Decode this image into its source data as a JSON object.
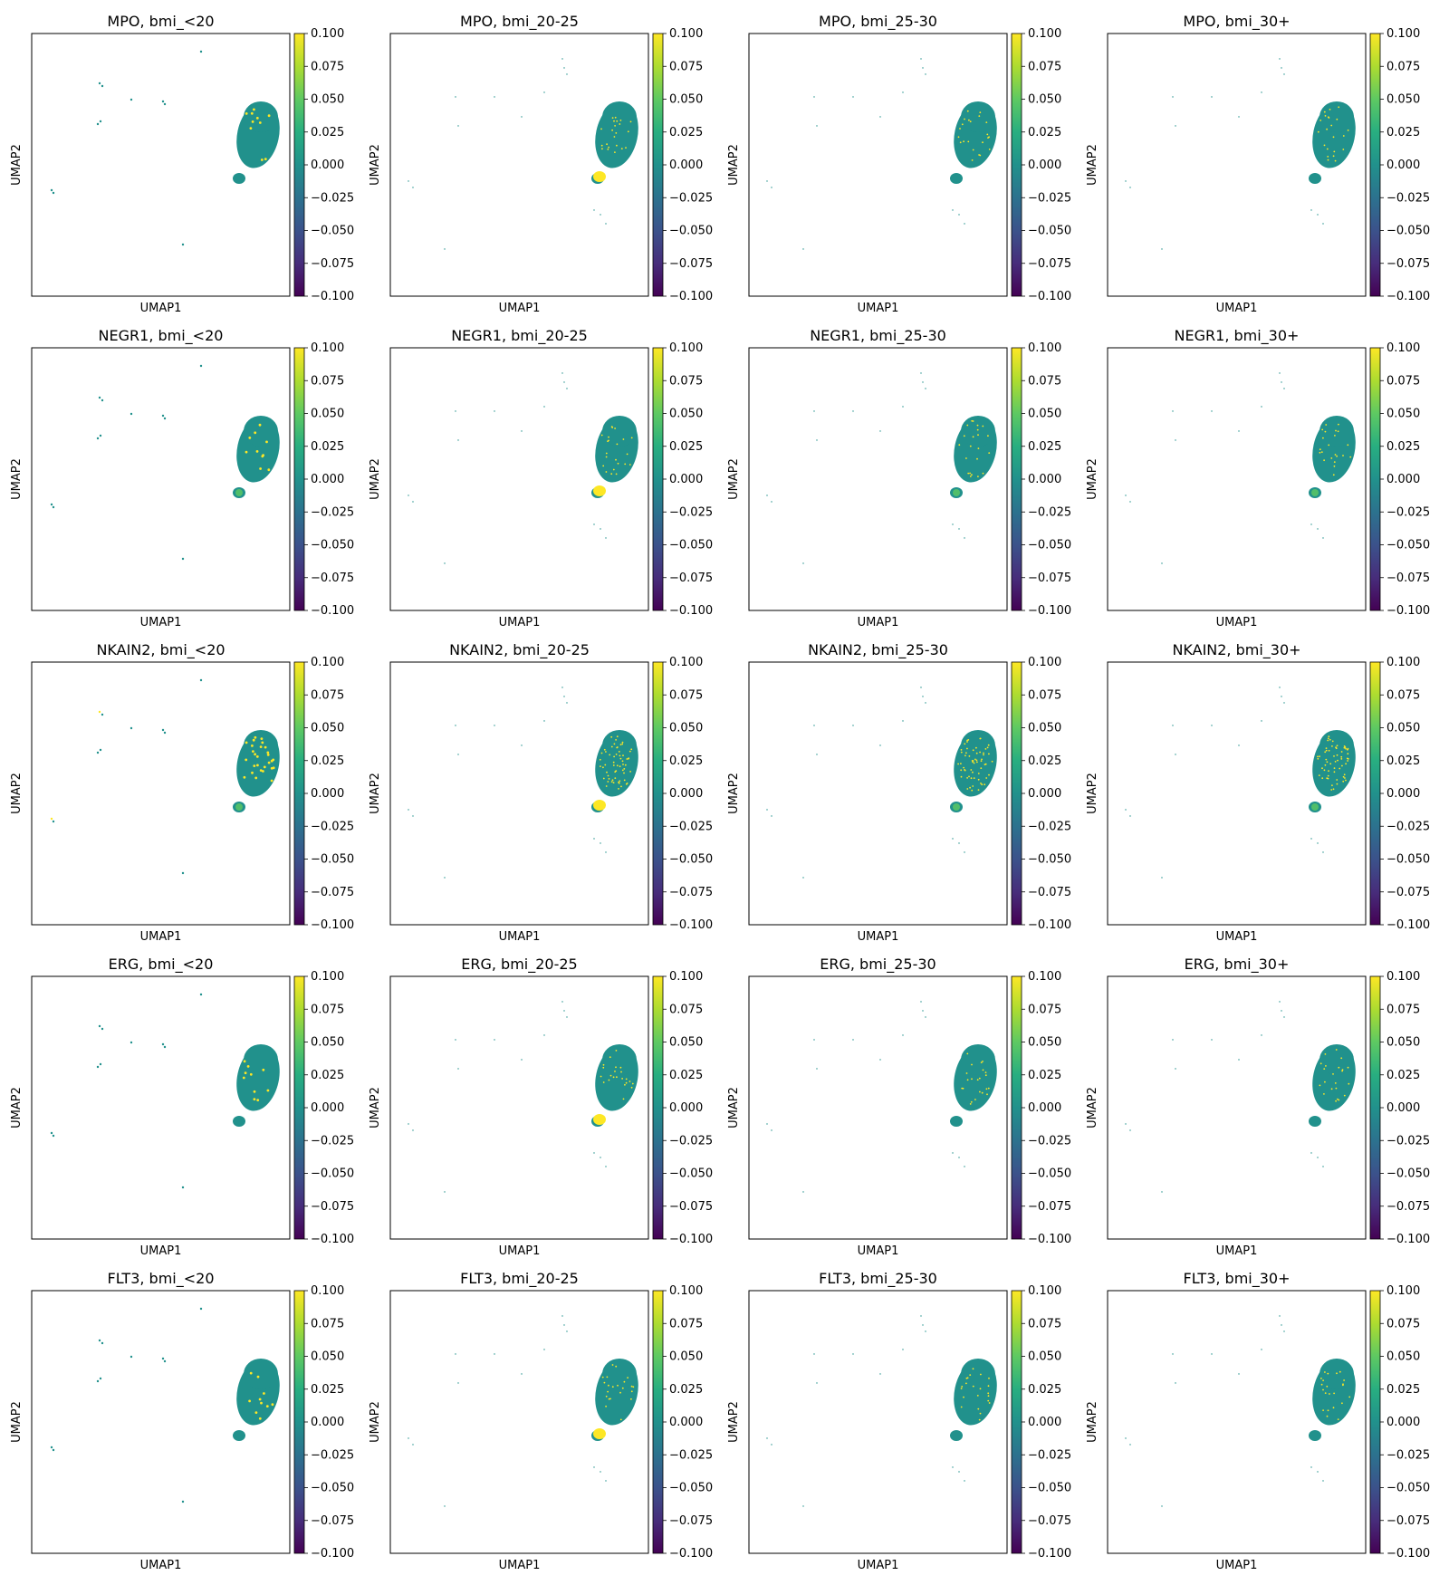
{
  "figure": {
    "genes": [
      "MPO",
      "NEGR1",
      "NKAIN2",
      "ERG",
      "FLT3"
    ],
    "groups": [
      "bmi_<20",
      "bmi_20-25",
      "bmi_25-30",
      "bmi_30+"
    ],
    "xlabel": "UMAP1",
    "ylabel": "UMAP2",
    "colorbar": {
      "colormap": "viridis",
      "range": [
        -0.1,
        0.1
      ],
      "ticks": [
        "0.100",
        "0.075",
        "0.050",
        "0.025",
        "0.000",
        "−0.025",
        "−0.050",
        "−0.075",
        "−0.100"
      ]
    }
  },
  "chart_data": {
    "type": "scatter",
    "panels": [
      {
        "title": "MPO, bmi_<20"
      },
      {
        "title": "MPO, bmi_20-25"
      },
      {
        "title": "MPO, bmi_25-30"
      },
      {
        "title": "MPO, bmi_30+"
      },
      {
        "title": "NEGR1, bmi_<20"
      },
      {
        "title": "NEGR1, bmi_20-25"
      },
      {
        "title": "NEGR1, bmi_25-30"
      },
      {
        "title": "NEGR1, bmi_30+"
      },
      {
        "title": "NKAIN2, bmi_<20"
      },
      {
        "title": "NKAIN2, bmi_20-25"
      },
      {
        "title": "NKAIN2, bmi_25-30"
      },
      {
        "title": "NKAIN2, bmi_30+"
      },
      {
        "title": "ERG, bmi_<20"
      },
      {
        "title": "ERG, bmi_20-25"
      },
      {
        "title": "ERG, bmi_25-30"
      },
      {
        "title": "ERG, bmi_30+"
      },
      {
        "title": "FLT3, bmi_<20"
      },
      {
        "title": "FLT3, bmi_20-25"
      },
      {
        "title": "FLT3, bmi_25-30"
      },
      {
        "title": "FLT3, bmi_30+"
      }
    ],
    "xlabel": "UMAP1",
    "ylabel": "UMAP2",
    "color_range": [
      -0.1,
      0.1
    ],
    "baseline_color": "#21918c",
    "high_color": "#fde725",
    "accent_colors": [
      "#5ec962",
      "#3b528b"
    ]
  }
}
